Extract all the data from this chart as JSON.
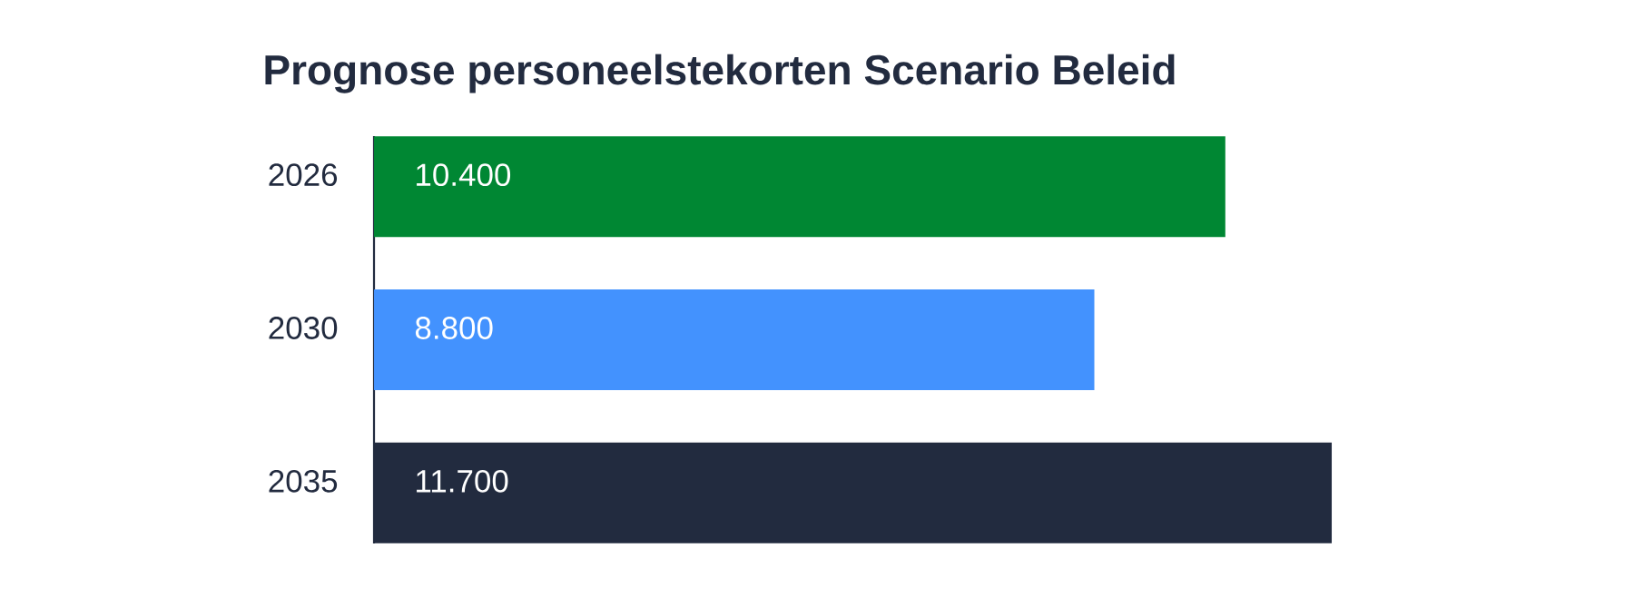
{
  "chart_data": {
    "type": "bar",
    "orientation": "horizontal",
    "title": "Prognose personeelstekorten Scenario Beleid",
    "categories": [
      "2026",
      "2030",
      "2035"
    ],
    "values": [
      10400,
      8800,
      11700
    ],
    "colors": [
      "#008733",
      "#4392fe",
      "#222b3f"
    ],
    "value_labels": [
      "10.400",
      "8.800",
      "11.700"
    ]
  }
}
